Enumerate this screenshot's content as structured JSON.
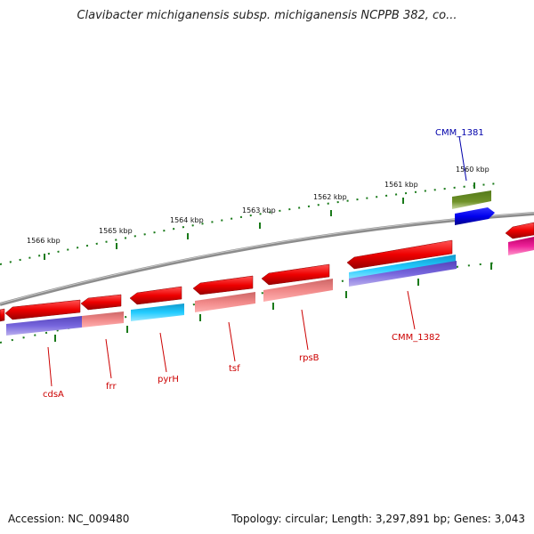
{
  "title": "Clavibacter michiganensis subsp. michiganensis NCPPB 382, co...",
  "accession": "Accession: NC_009480",
  "topology": "Topology: circular; Length: 3,297,891 bp; Genes: 3,043",
  "scale_ticks": [
    "1566 kbp",
    "1565 kbp",
    "1564 kbp",
    "1563 kbp",
    "1562 kbp",
    "1561 kbp",
    "1560 kbp"
  ],
  "gene_labels": [
    {
      "text": "CMM_1381",
      "color": "#0000aa"
    },
    {
      "text": "CMM_1382",
      "color": "#cc0000"
    },
    {
      "text": "rpsB",
      "color": "#cc0000"
    },
    {
      "text": "tsf",
      "color": "#cc0000"
    },
    {
      "text": "pyrH",
      "color": "#cc0000"
    },
    {
      "text": "frr",
      "color": "#cc0000"
    },
    {
      "text": "cdsA",
      "color": "#cc0000"
    }
  ],
  "colors": {
    "backbone": "#8c8c8c",
    "forward_gene": "#ee1111",
    "cds_pink": "#ee7777",
    "blue_feature": "#0000ee",
    "green_feature": "#6a8a22",
    "cyan_feature": "#22bbee",
    "purple_feature": "#6655cc",
    "magenta_feature": "#dd1188",
    "tick_green": "#1a7a1a"
  }
}
